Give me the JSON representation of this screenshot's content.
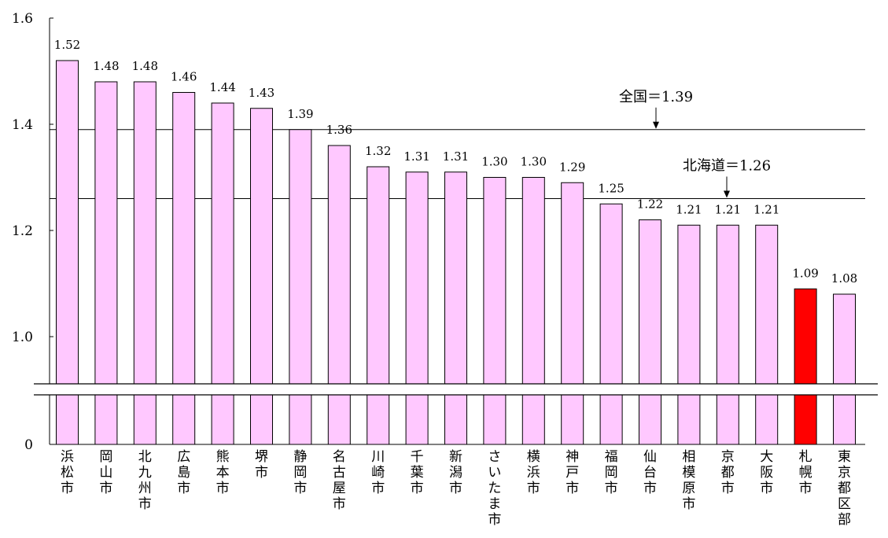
{
  "chart_data": {
    "type": "bar",
    "categories": [
      "浜松市",
      "岡山市",
      "北九州市",
      "広島市",
      "熊本市",
      "堺市",
      "静岡市",
      "名古屋市",
      "川崎市",
      "千葉市",
      "新潟市",
      "さいたま市",
      "横浜市",
      "神戸市",
      "福岡市",
      "仙台市",
      "相模原市",
      "京都市",
      "大阪市",
      "札幌市",
      "東京都区部"
    ],
    "values": [
      1.52,
      1.48,
      1.48,
      1.46,
      1.44,
      1.43,
      1.39,
      1.36,
      1.32,
      1.31,
      1.31,
      1.3,
      1.3,
      1.29,
      1.25,
      1.22,
      1.21,
      1.21,
      1.21,
      1.09,
      1.08
    ],
    "value_labels": [
      "1.52",
      "1.48",
      "1.48",
      "1.46",
      "1.44",
      "1.43",
      "1.39",
      "1.36",
      "1.32",
      "1.31",
      "1.31",
      "1.30",
      "1.30",
      "1.29",
      "1.25",
      "1.22",
      "1.21",
      "1.21",
      "1.21",
      "1.09",
      "1.08"
    ],
    "highlight": "札幌市",
    "colors": {
      "bar": "#ffc8ff",
      "highlight": "#ff0000",
      "outline": "#000000"
    },
    "ylim": [
      0,
      1.6
    ],
    "axis_break": true,
    "y_ticks": [
      {
        "value": 1.6,
        "label": "1.6"
      },
      {
        "value": 1.4,
        "label": "1.4"
      },
      {
        "value": 1.2,
        "label": "1.2"
      },
      {
        "value": 1.0,
        "label": "1.0"
      },
      {
        "value": 0,
        "label": "0"
      }
    ],
    "reference_lines": [
      {
        "value": 1.39,
        "label": "全国＝1.39"
      },
      {
        "value": 1.26,
        "label": "北海道＝1.26"
      }
    ],
    "title": "",
    "xlabel": "",
    "ylabel": ""
  }
}
